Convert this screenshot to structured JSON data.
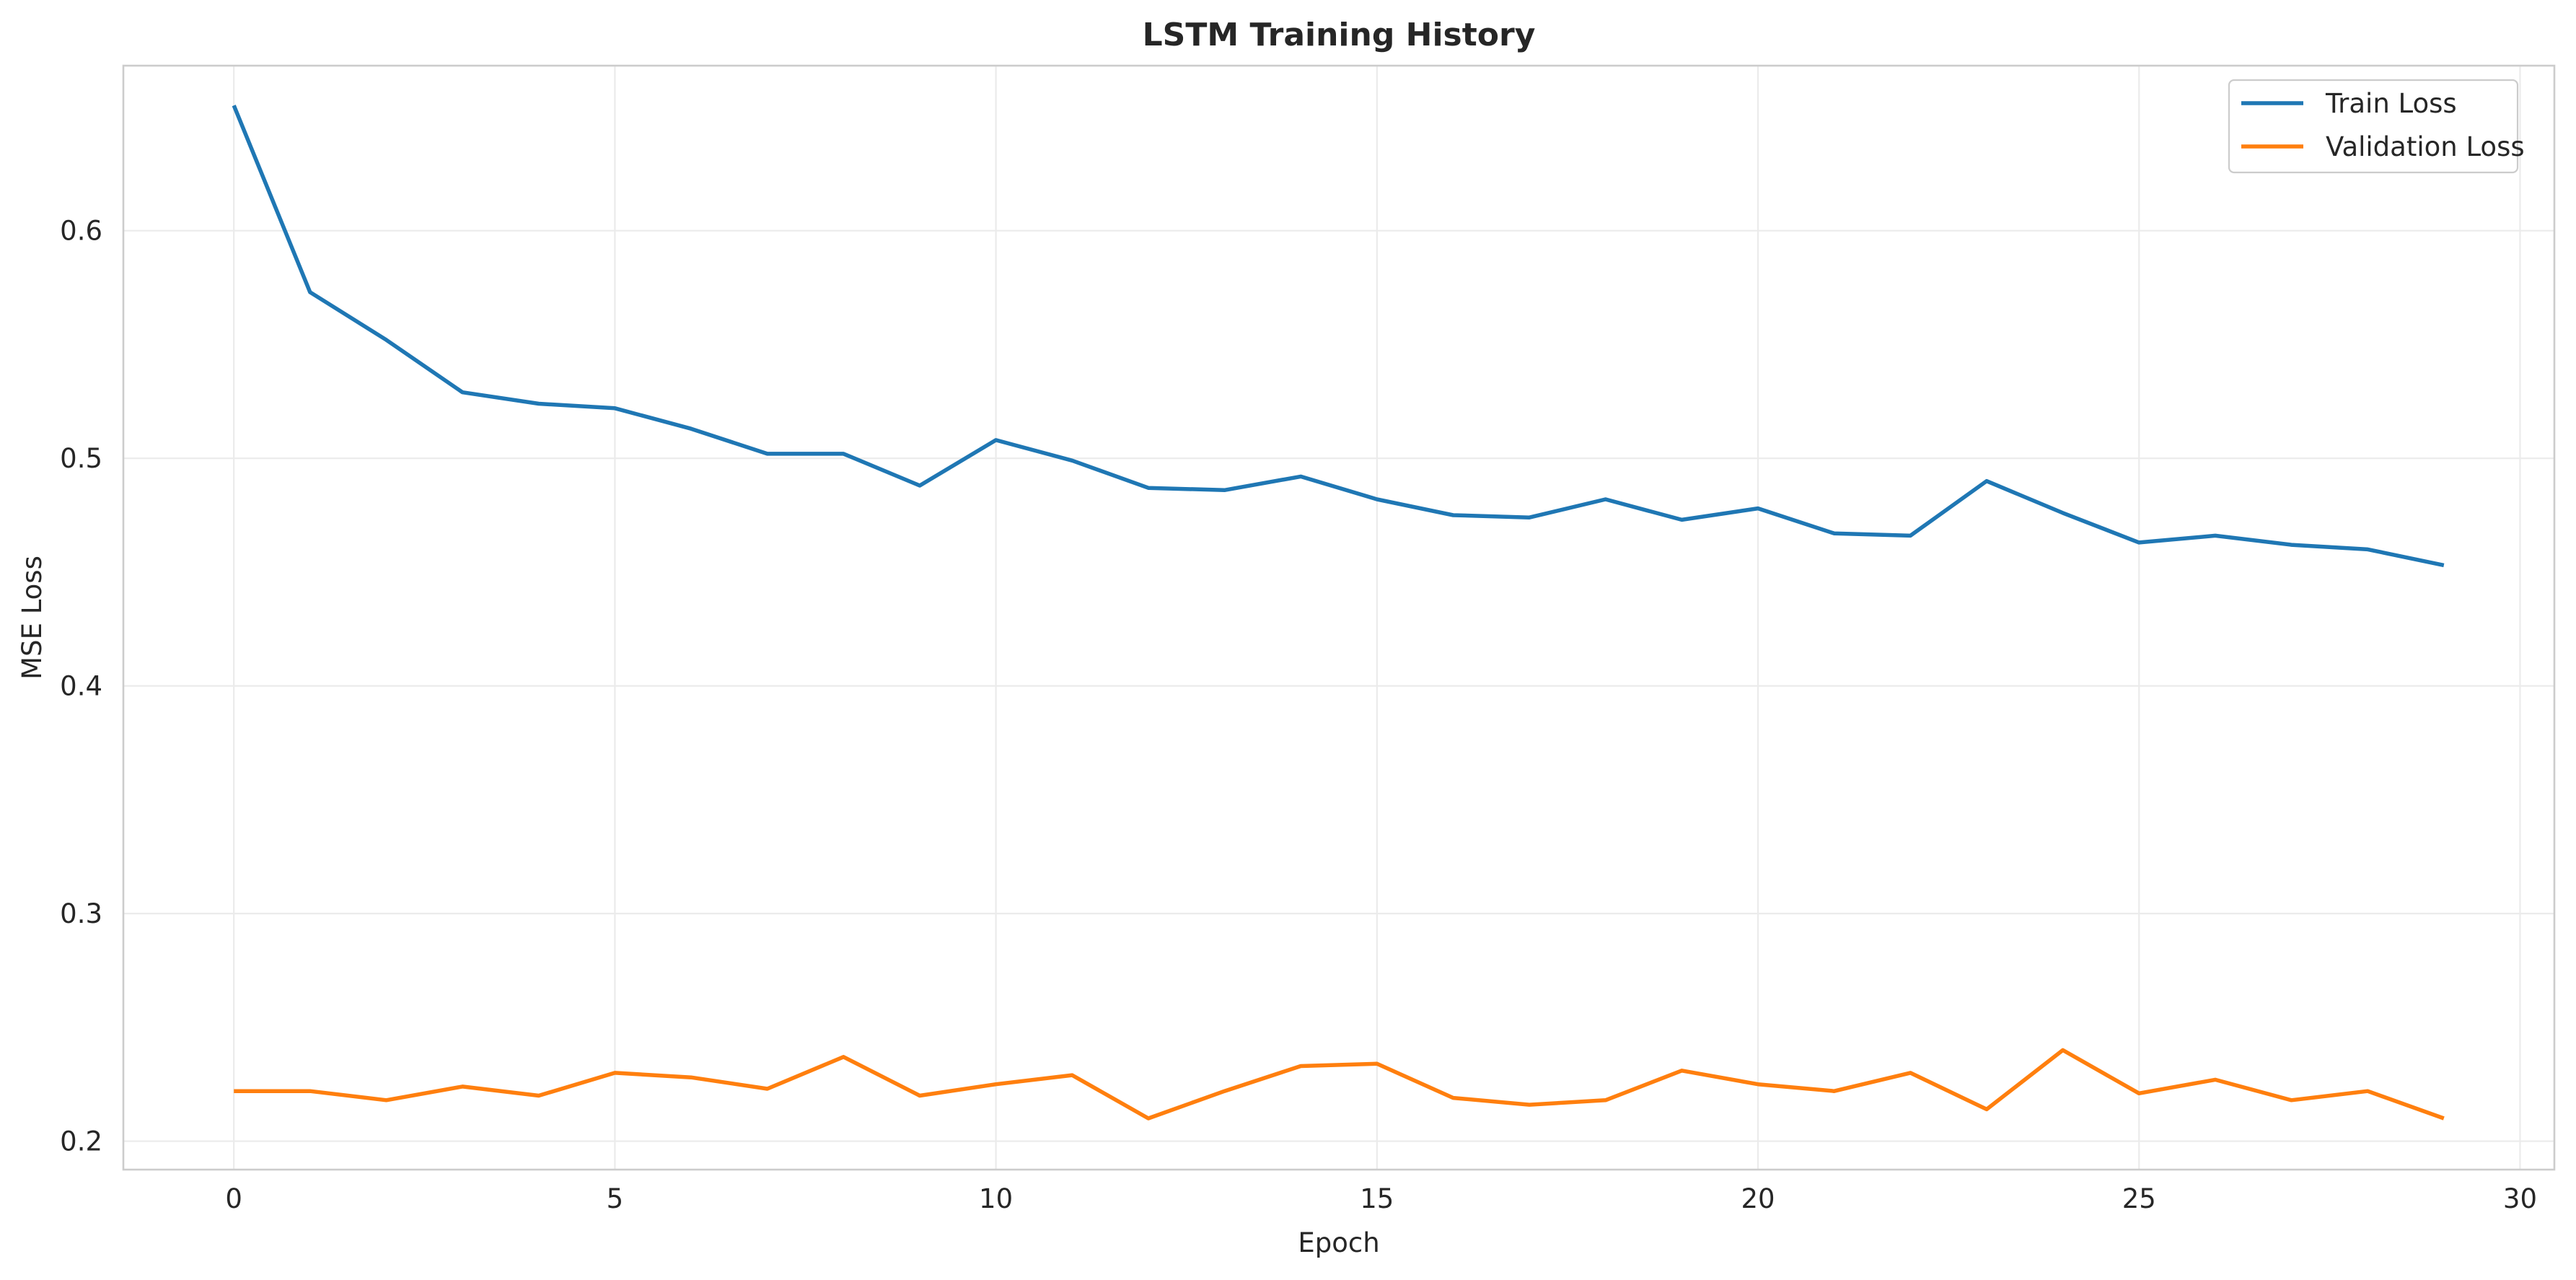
{
  "chart_data": {
    "type": "line",
    "title": "LSTM Training History",
    "xlabel": "Epoch",
    "ylabel": "MSE Loss",
    "xlim": [
      -1.45,
      30.45
    ],
    "ylim": [
      0.1875,
      0.6725
    ],
    "xticks": [
      0,
      5,
      10,
      15,
      20,
      25,
      30
    ],
    "xtick_labels": [
      "0",
      "5",
      "10",
      "15",
      "20",
      "25",
      "30"
    ],
    "yticks": [
      0.2,
      0.3,
      0.4,
      0.5,
      0.6
    ],
    "ytick_labels": [
      "0.2",
      "0.3",
      "0.4",
      "0.5",
      "0.6"
    ],
    "grid": true,
    "legend_position": "top-right",
    "x": [
      0,
      1,
      2,
      3,
      4,
      5,
      6,
      7,
      8,
      9,
      10,
      11,
      12,
      13,
      14,
      15,
      16,
      17,
      18,
      19,
      20,
      21,
      22,
      23,
      24,
      25,
      26,
      27,
      28,
      29
    ],
    "series": [
      {
        "name": "Train Loss",
        "color": "#1f77b4",
        "values": [
          0.655,
          0.573,
          0.552,
          0.529,
          0.524,
          0.522,
          0.513,
          0.502,
          0.502,
          0.488,
          0.508,
          0.499,
          0.487,
          0.486,
          0.492,
          0.482,
          0.475,
          0.474,
          0.482,
          0.473,
          0.478,
          0.467,
          0.466,
          0.49,
          0.476,
          0.463,
          0.466,
          0.462,
          0.46,
          0.453
        ]
      },
      {
        "name": "Validation Loss",
        "color": "#ff7f0e",
        "values": [
          0.222,
          0.222,
          0.218,
          0.224,
          0.22,
          0.23,
          0.228,
          0.223,
          0.237,
          0.22,
          0.225,
          0.229,
          0.21,
          0.222,
          0.233,
          0.234,
          0.219,
          0.216,
          0.218,
          0.231,
          0.225,
          0.222,
          0.23,
          0.214,
          0.24,
          0.221,
          0.227,
          0.218,
          0.222,
          0.21
        ]
      }
    ]
  }
}
